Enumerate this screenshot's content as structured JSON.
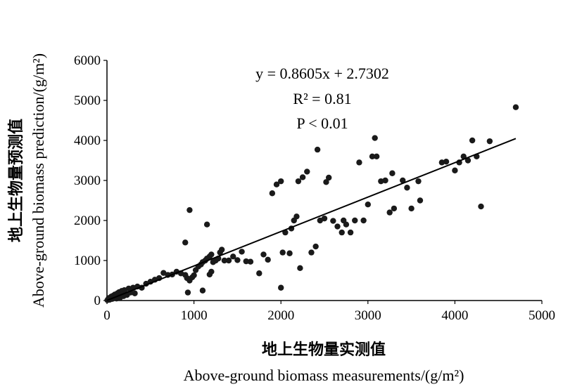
{
  "chart_data": {
    "type": "scatter",
    "xlabel_cn": "地上生物量实测值",
    "xlabel_en": "Above-ground biomass measurements/(g/m²)",
    "ylabel_cn": "地上生物量预测值",
    "ylabel_en": "Above-ground biomass prediction/(g/m²)",
    "xlim": [
      0,
      5000
    ],
    "ylim": [
      0,
      6000
    ],
    "x_ticks": [
      "0",
      "1000",
      "2000",
      "3000",
      "4000",
      "5000"
    ],
    "y_ticks": [
      "0",
      "1000",
      "2000",
      "3000",
      "4000",
      "5000",
      "6000"
    ],
    "grid": false,
    "annotations": {
      "equation": "y = 0.8605x + 2.7302",
      "r2": "R² = 0.81",
      "p": "P < 0.01"
    },
    "fit_line": {
      "slope": 0.8605,
      "intercept": 2.7302,
      "x_range": [
        0,
        4700
      ]
    },
    "points": [
      [
        5,
        10
      ],
      [
        15,
        30
      ],
      [
        20,
        60
      ],
      [
        30,
        20
      ],
      [
        40,
        80
      ],
      [
        50,
        100
      ],
      [
        60,
        40
      ],
      [
        70,
        120
      ],
      [
        80,
        60
      ],
      [
        90,
        150
      ],
      [
        100,
        90
      ],
      [
        110,
        50
      ],
      [
        120,
        180
      ],
      [
        130,
        130
      ],
      [
        140,
        210
      ],
      [
        150,
        70
      ],
      [
        160,
        200
      ],
      [
        170,
        240
      ],
      [
        180,
        160
      ],
      [
        190,
        110
      ],
      [
        200,
        260
      ],
      [
        210,
        180
      ],
      [
        230,
        140
      ],
      [
        250,
        300
      ],
      [
        270,
        200
      ],
      [
        300,
        320
      ],
      [
        320,
        180
      ],
      [
        350,
        350
      ],
      [
        400,
        320
      ],
      [
        450,
        420
      ],
      [
        500,
        470
      ],
      [
        550,
        520
      ],
      [
        600,
        560
      ],
      [
        650,
        690
      ],
      [
        700,
        640
      ],
      [
        750,
        650
      ],
      [
        800,
        720
      ],
      [
        850,
        680
      ],
      [
        900,
        640
      ],
      [
        920,
        560
      ],
      [
        950,
        500
      ],
      [
        980,
        580
      ],
      [
        1000,
        630
      ],
      [
        1020,
        760
      ],
      [
        1050,
        850
      ],
      [
        1080,
        900
      ],
      [
        1100,
        960
      ],
      [
        1130,
        1000
      ],
      [
        1150,
        1050
      ],
      [
        1180,
        1100
      ],
      [
        1200,
        1150
      ],
      [
        1220,
        960
      ],
      [
        1250,
        1000
      ],
      [
        1280,
        1050
      ],
      [
        1300,
        1200
      ],
      [
        1320,
        1270
      ],
      [
        1350,
        1000
      ],
      [
        1400,
        1000
      ],
      [
        900,
        1450
      ],
      [
        950,
        2260
      ],
      [
        1150,
        1900
      ],
      [
        1180,
        650
      ],
      [
        1200,
        720
      ],
      [
        930,
        200
      ],
      [
        1100,
        250
      ],
      [
        1550,
        1220
      ],
      [
        1600,
        980
      ],
      [
        1650,
        970
      ],
      [
        1750,
        680
      ],
      [
        1800,
        1150
      ],
      [
        1850,
        1020
      ],
      [
        1900,
        2680
      ],
      [
        1950,
        2900
      ],
      [
        2000,
        2980
      ],
      [
        2000,
        320
      ],
      [
        2050,
        1700
      ],
      [
        2100,
        1180
      ],
      [
        2120,
        1800
      ],
      [
        2150,
        2000
      ],
      [
        2180,
        2100
      ],
      [
        2200,
        2980
      ],
      [
        2250,
        3080
      ],
      [
        2300,
        3220
      ],
      [
        2350,
        1200
      ],
      [
        2400,
        1350
      ],
      [
        2420,
        3770
      ],
      [
        2450,
        2000
      ],
      [
        2500,
        2050
      ],
      [
        2520,
        2960
      ],
      [
        2550,
        3070
      ],
      [
        2600,
        1990
      ],
      [
        2650,
        1850
      ],
      [
        2700,
        1700
      ],
      [
        2720,
        2000
      ],
      [
        2750,
        1900
      ],
      [
        2800,
        1700
      ],
      [
        2850,
        2000
      ],
      [
        2900,
        3450
      ],
      [
        2950,
        2000
      ],
      [
        3000,
        2400
      ],
      [
        3050,
        3600
      ],
      [
        3080,
        4060
      ],
      [
        3100,
        3600
      ],
      [
        3150,
        2980
      ],
      [
        3200,
        3000
      ],
      [
        3250,
        2200
      ],
      [
        3280,
        3180
      ],
      [
        3300,
        2300
      ],
      [
        3400,
        3000
      ],
      [
        3450,
        2820
      ],
      [
        3500,
        2300
      ],
      [
        3580,
        2980
      ],
      [
        3600,
        2500
      ],
      [
        3850,
        3450
      ],
      [
        3900,
        3470
      ],
      [
        4000,
        3250
      ],
      [
        4050,
        3450
      ],
      [
        4100,
        3600
      ],
      [
        4150,
        3500
      ],
      [
        4200,
        4000
      ],
      [
        4250,
        3600
      ],
      [
        4300,
        2350
      ],
      [
        4400,
        3980
      ],
      [
        4700,
        4830
      ],
      [
        2220,
        810
      ],
      [
        1500,
        1010
      ],
      [
        1450,
        1100
      ],
      [
        2020,
        1200
      ]
    ]
  }
}
